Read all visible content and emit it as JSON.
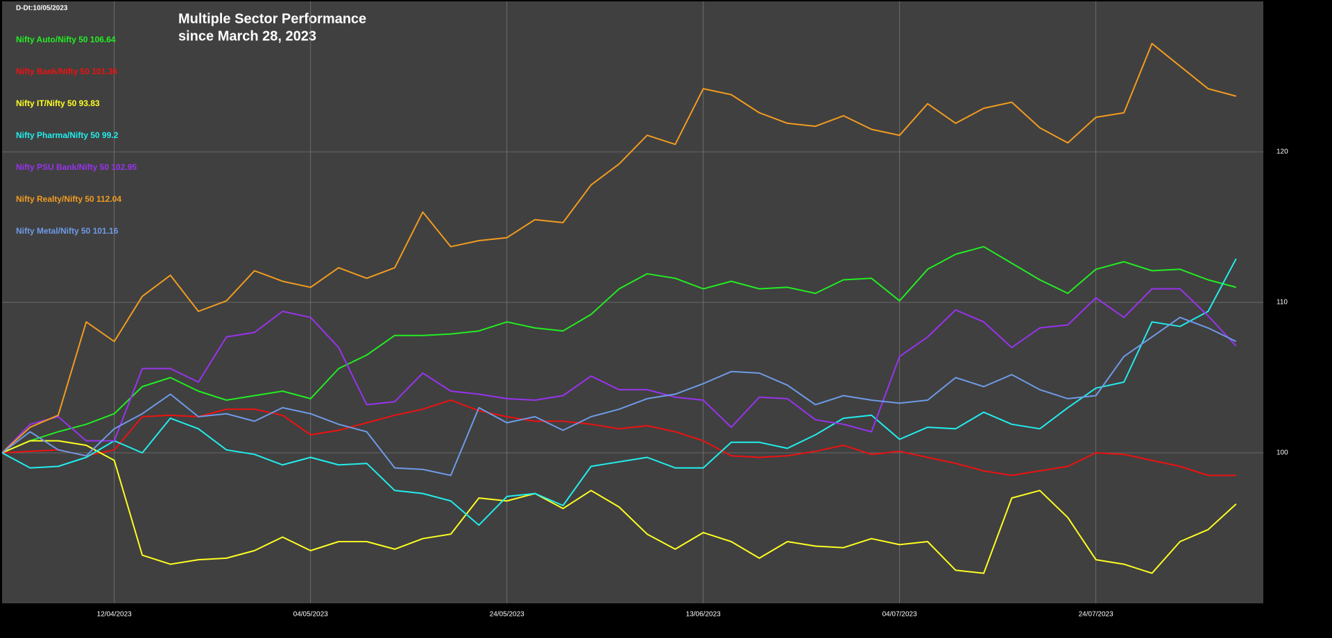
{
  "chart_data": {
    "type": "line",
    "title": "Multiple Sector Performance",
    "subtitle": "since March 28, 2023",
    "annotation": "D-Dt:10/05/2023",
    "categories": [
      null,
      null,
      null,
      null,
      "12/04/2023",
      null,
      null,
      null,
      null,
      null,
      null,
      "04/05/2023",
      null,
      null,
      null,
      null,
      null,
      null,
      "24/05/2023",
      null,
      null,
      null,
      null,
      null,
      null,
      "13/06/2023",
      null,
      null,
      null,
      null,
      null,
      null,
      "04/07/2023",
      null,
      null,
      null,
      null,
      null,
      null,
      "24/07/2023",
      null,
      null,
      null,
      null,
      null
    ],
    "ylim": [
      90,
      130
    ],
    "yticks": [
      100,
      110,
      120
    ],
    "grid": true,
    "legend": "upper left",
    "series": [
      {
        "name": "Nifty Auto/Nifty 50 106.64",
        "color": "#22ee22",
        "values": [
          100,
          100.8,
          101.4,
          101.9,
          102.6,
          104.4,
          105,
          104.1,
          103.5,
          103.8,
          104.1,
          103.6,
          105.6,
          106.5,
          107.8,
          107.8,
          107.9,
          108.1,
          108.7,
          108.3,
          108.1,
          109.2,
          110.9,
          111.9,
          111.6,
          110.9,
          111.4,
          110.9,
          111,
          110.6,
          111.5,
          111.6,
          110.1,
          112.2,
          113.2,
          113.7,
          112.6,
          111.5,
          110.6,
          112.2,
          112.7,
          112.1,
          112.2,
          111.5,
          111
        ]
      },
      {
        "name": "Nifty Bank/Nifty 50 101.36",
        "color": "#ee1111",
        "values": [
          100,
          100.1,
          100.2,
          99.8,
          100.2,
          102.4,
          102.5,
          102.4,
          102.9,
          102.9,
          102.5,
          101.2,
          101.5,
          102,
          102.5,
          102.9,
          103.5,
          102.8,
          102.4,
          102.1,
          102.1,
          101.9,
          101.6,
          101.8,
          101.4,
          100.8,
          99.8,
          99.7,
          99.8,
          100.1,
          100.5,
          99.9,
          100.1,
          99.7,
          99.3,
          98.8,
          98.5,
          98.8,
          99.1,
          100,
          99.9,
          99.5,
          99.1,
          98.5,
          98.5
        ]
      },
      {
        "name": "Nifty IT/Nifty 50 93.83",
        "color": "#ffff22",
        "values": [
          100,
          100.8,
          100.8,
          100.5,
          99.5,
          93.2,
          92.6,
          92.9,
          93,
          93.5,
          94.4,
          93.5,
          94.1,
          94.1,
          93.6,
          94.3,
          94.6,
          97,
          96.8,
          97.3,
          96.3,
          97.5,
          96.4,
          94.6,
          93.6,
          94.7,
          94.1,
          93,
          94.1,
          93.8,
          93.7,
          94.3,
          93.9,
          94.1,
          92.2,
          92,
          97,
          97.5,
          95.7,
          92.9,
          92.6,
          92,
          94.1,
          94.9,
          96.6
        ]
      },
      {
        "name": "Nifty Pharma/Nifty 50 99.2",
        "color": "#22eeee",
        "values": [
          100,
          99,
          99.1,
          99.7,
          100.8,
          100,
          102.3,
          101.6,
          100.2,
          99.9,
          99.2,
          99.7,
          99.2,
          99.3,
          97.5,
          97.3,
          96.8,
          95.2,
          97.1,
          97.3,
          96.5,
          99.1,
          99.4,
          99.7,
          99,
          99,
          100.7,
          100.7,
          100.3,
          101.2,
          102.3,
          102.5,
          100.9,
          101.7,
          101.6,
          102.7,
          101.9,
          101.6,
          103,
          104.3,
          104.7,
          108.7,
          108.4,
          109.4,
          112.9
        ]
      },
      {
        "name": "Nifty PSU Bank/Nifty 50 102.95",
        "color": "#9933ee",
        "values": [
          100,
          101.9,
          102.4,
          100.8,
          100.8,
          105.6,
          105.6,
          104.7,
          107.7,
          108,
          109.4,
          109,
          107,
          103.2,
          103.4,
          105.3,
          104.1,
          103.9,
          103.6,
          103.5,
          103.8,
          105.1,
          104.2,
          104.2,
          103.7,
          103.5,
          101.7,
          103.7,
          103.6,
          102.2,
          101.9,
          101.4,
          106.4,
          107.7,
          109.5,
          108.7,
          107,
          108.3,
          108.5,
          110.3,
          109,
          110.9,
          110.9,
          109.1,
          107.1
        ]
      },
      {
        "name": "Nifty Realty/Nifty 50 112.04",
        "color": "#f39c1f",
        "values": [
          100,
          101.7,
          102.5,
          108.7,
          107.4,
          110.4,
          111.8,
          109.4,
          110.1,
          112.1,
          111.4,
          111,
          112.3,
          111.6,
          112.3,
          116,
          113.7,
          114.1,
          114.3,
          115.5,
          115.3,
          117.8,
          119.2,
          121.1,
          120.5,
          124.2,
          123.8,
          122.6,
          121.9,
          121.7,
          122.4,
          121.5,
          121.1,
          123.2,
          121.9,
          122.9,
          123.3,
          121.6,
          120.6,
          122.3,
          122.6,
          127.2,
          125.7,
          124.2,
          123.7
        ]
      },
      {
        "name": "Nifty Metal/Nifty 50 101.16",
        "color": "#6f9be8",
        "values": [
          100,
          101.4,
          100.2,
          99.8,
          101.6,
          102.6,
          103.9,
          102.4,
          102.6,
          102.1,
          103,
          102.6,
          101.9,
          101.4,
          99,
          98.9,
          98.5,
          103,
          102,
          102.4,
          101.5,
          102.4,
          102.9,
          103.6,
          103.9,
          104.6,
          105.4,
          105.3,
          104.5,
          103.2,
          103.8,
          103.5,
          103.3,
          103.5,
          105,
          104.4,
          105.2,
          104.2,
          103.6,
          103.8,
          106.4,
          107.7,
          109,
          108.3,
          107.4
        ]
      }
    ]
  }
}
